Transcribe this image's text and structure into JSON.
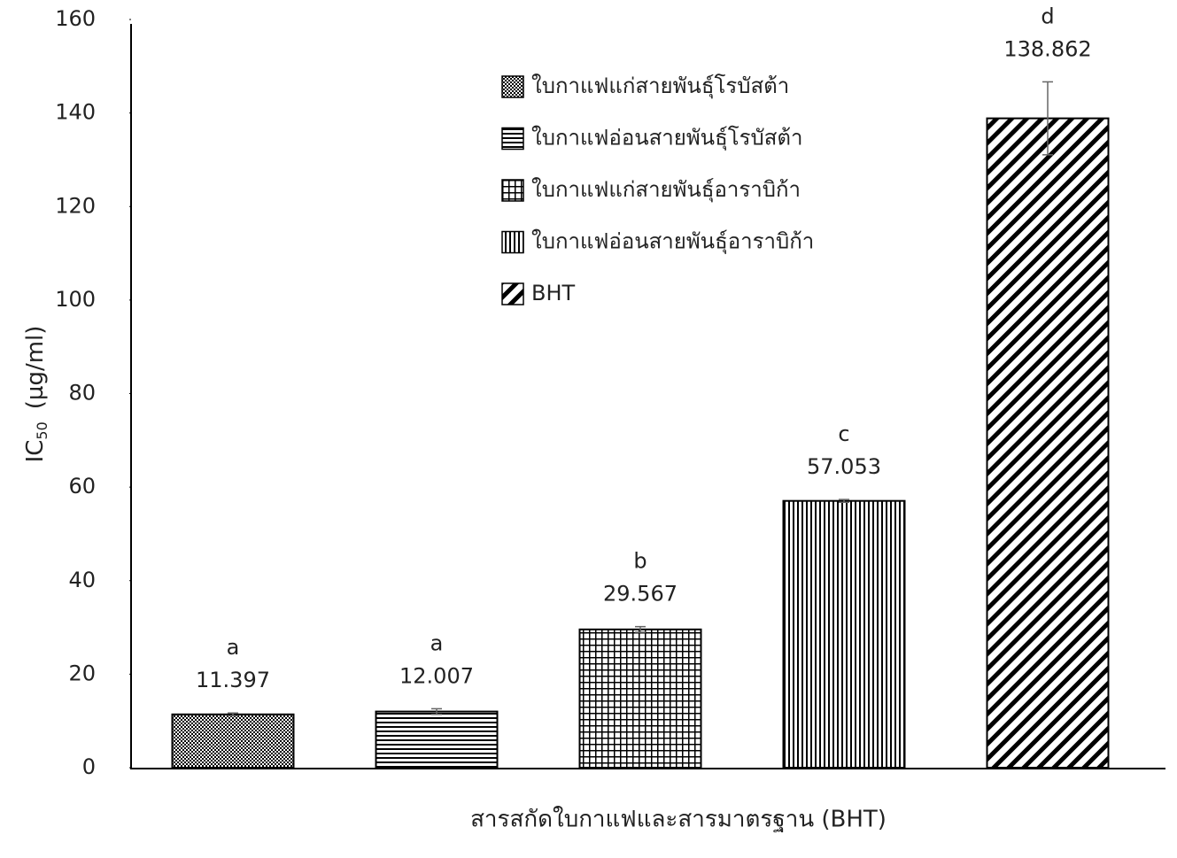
{
  "chart_data": {
    "type": "bar",
    "x_label": "สารสกัดใบกาแฟและสารมาตรฐาน (BHT)",
    "y_label": {
      "main": "IC",
      "subscript": "50",
      "unit": "(µg/ml)"
    },
    "ylim": [
      0,
      160
    ],
    "yticks": [
      0,
      20,
      40,
      60,
      80,
      100,
      120,
      140,
      160
    ],
    "series": [
      {
        "name": "ใบกาแฟแก่สายพันธุ์โรบัสต้า",
        "pattern": "dots",
        "values": [
          11.397
        ],
        "errors": [
          0.3
        ],
        "letters": [
          "a"
        ]
      },
      {
        "name": "ใบกาแฟอ่อนสายพันธุ์โรบัสต้า",
        "pattern": "hlines",
        "values": [
          12.007
        ],
        "errors": [
          0.6
        ],
        "letters": [
          "a"
        ]
      },
      {
        "name": "ใบกาแฟแก่สายพันธุ์อาราบิก้า",
        "pattern": "grid",
        "values": [
          29.567
        ],
        "errors": [
          0.6
        ],
        "letters": [
          "b"
        ]
      },
      {
        "name": "ใบกาแฟอ่อนสายพันธุ์อาราบิก้า",
        "pattern": "vlines",
        "values": [
          57.053
        ],
        "errors": [
          0.3
        ],
        "letters": [
          "c"
        ]
      },
      {
        "name": "BHT",
        "pattern": "diag",
        "values": [
          138.862
        ],
        "errors": [
          7.8
        ],
        "letters": [
          "d"
        ]
      }
    ]
  }
}
